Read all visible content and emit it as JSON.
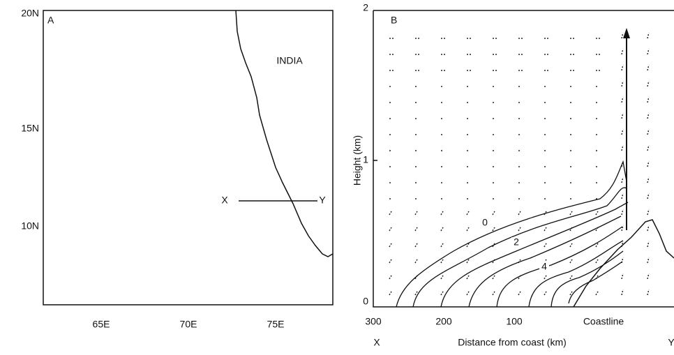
{
  "panel_a": {
    "label": "A",
    "lat_labels": [
      "20N",
      "15N",
      "10N"
    ],
    "lon_labels": [
      "65E",
      "70E",
      "75E"
    ],
    "country": "INDIA",
    "section_start": "X",
    "section_end": "Y"
  },
  "panel_b": {
    "label": "B",
    "y_label": "Height (km)",
    "y_tick_labels": [
      "2",
      "1",
      "0"
    ],
    "x_tick_labels": [
      "300",
      "200",
      "100"
    ],
    "coastline": "Coastline",
    "x_label": "Distance from coast (km)",
    "section_start": "X",
    "section_end": "Y",
    "contour_labels": [
      "0",
      "2",
      "4"
    ]
  }
}
